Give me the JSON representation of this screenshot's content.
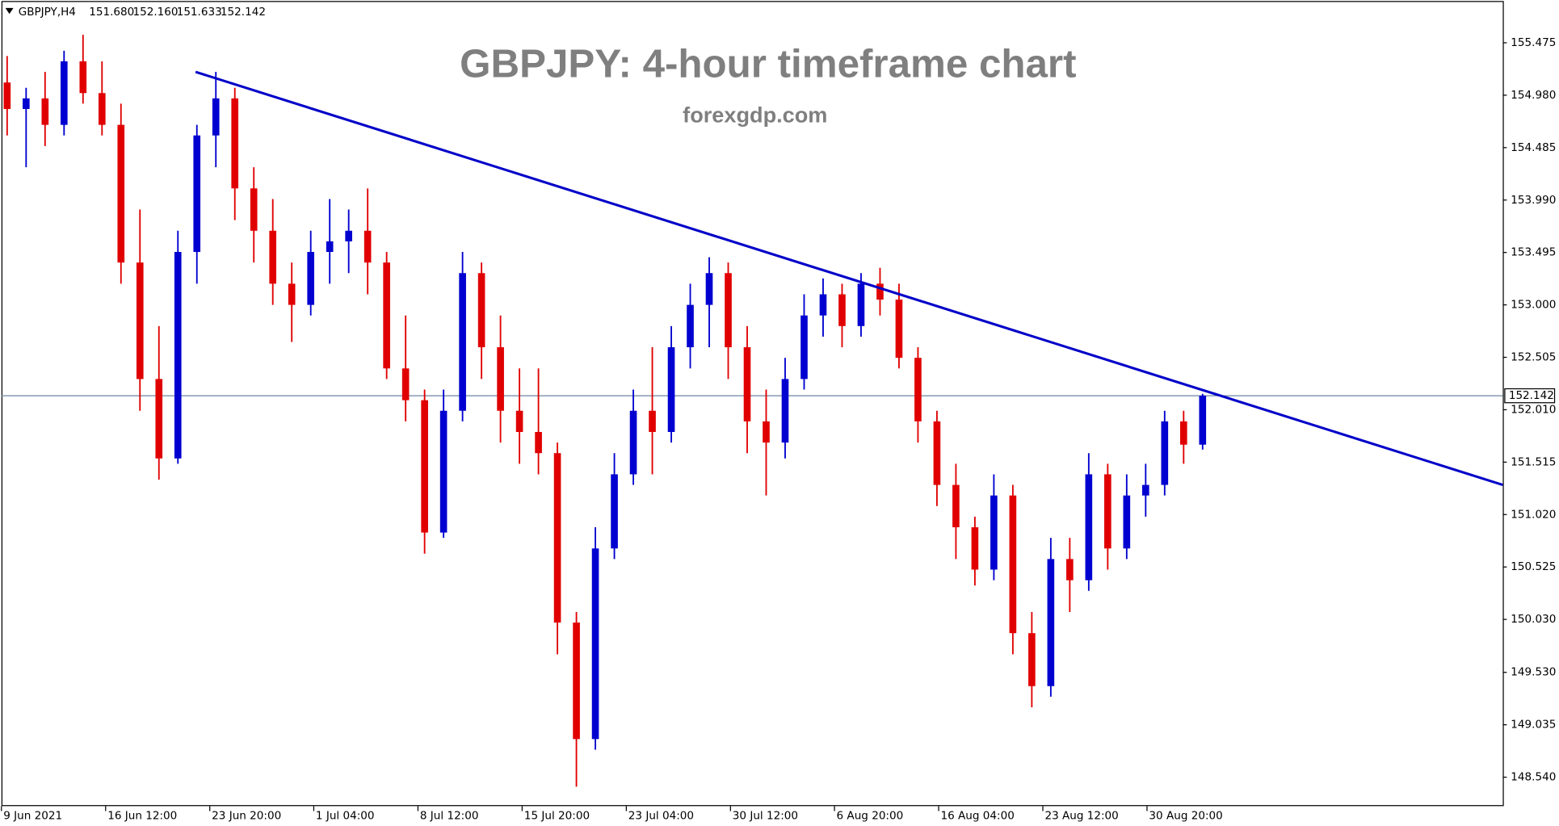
{
  "chart_data": {
    "type": "candlestick",
    "title": "GBPJPY: 4-hour timeframe chart",
    "subtitle": "forexgdp.com",
    "header": {
      "symbol": "GBPJPY,H4",
      "ohlc": [
        "151.680",
        "152.160",
        "151.633",
        "152.142"
      ]
    },
    "bull_color": "#0000d0",
    "bear_color": "#e00000",
    "x": [
      0,
      1,
      2,
      3,
      4,
      5,
      6,
      7,
      8,
      9,
      10,
      11,
      12,
      13,
      14,
      15,
      16,
      17,
      18,
      19,
      20,
      21,
      22,
      23,
      24,
      25,
      26,
      27,
      28,
      29,
      30,
      31,
      32,
      33,
      34,
      35,
      36,
      37,
      38,
      39,
      40,
      41,
      42,
      43,
      44,
      45,
      46,
      47,
      48,
      49,
      50,
      51,
      52,
      53,
      54,
      55,
      56,
      57,
      58,
      59,
      60,
      61,
      62,
      63
    ],
    "open": [
      155.1,
      154.85,
      154.95,
      154.7,
      155.3,
      155.0,
      154.7,
      153.4,
      152.3,
      151.55,
      153.5,
      154.6,
      154.95,
      154.1,
      153.7,
      153.2,
      153.0,
      153.5,
      153.6,
      153.7,
      153.4,
      152.4,
      152.1,
      150.85,
      152.0,
      153.3,
      152.6,
      152.0,
      151.8,
      151.6,
      150.0,
      148.9,
      150.7,
      151.4,
      152.0,
      151.8,
      152.6,
      153.0,
      153.3,
      152.6,
      151.9,
      151.7,
      152.3,
      152.9,
      153.1,
      152.8,
      153.2,
      153.05,
      152.5,
      151.9,
      151.3,
      150.9,
      150.5,
      151.2,
      149.9,
      149.4,
      150.6,
      150.4,
      151.4,
      150.7,
      151.2,
      151.3,
      151.9,
      151.68
    ],
    "high": [
      155.35,
      155.05,
      155.2,
      155.4,
      155.55,
      155.3,
      154.9,
      153.9,
      152.8,
      153.7,
      154.7,
      155.2,
      155.05,
      154.3,
      154.0,
      153.4,
      153.7,
      154.0,
      153.9,
      154.1,
      153.5,
      152.9,
      152.2,
      152.2,
      153.5,
      153.4,
      152.9,
      152.4,
      152.4,
      151.7,
      150.1,
      150.9,
      151.6,
      152.2,
      152.6,
      152.8,
      153.2,
      153.45,
      153.4,
      152.8,
      152.2,
      152.5,
      153.1,
      153.25,
      153.2,
      153.3,
      153.35,
      153.2,
      152.6,
      152.0,
      151.5,
      151.0,
      151.4,
      151.3,
      150.1,
      150.8,
      150.8,
      151.6,
      151.5,
      151.4,
      151.5,
      152.0,
      152.0,
      152.16
    ],
    "low": [
      154.6,
      154.3,
      154.5,
      154.6,
      154.9,
      154.6,
      153.2,
      152.0,
      151.35,
      151.5,
      153.2,
      154.3,
      153.8,
      153.4,
      153.0,
      152.65,
      152.9,
      153.2,
      153.3,
      153.1,
      152.3,
      151.9,
      150.65,
      150.8,
      151.9,
      152.3,
      151.7,
      151.5,
      151.4,
      149.7,
      148.45,
      148.8,
      150.6,
      151.3,
      151.4,
      151.7,
      152.4,
      152.6,
      152.3,
      151.6,
      151.2,
      151.55,
      152.2,
      152.7,
      152.6,
      152.7,
      152.9,
      152.4,
      151.7,
      151.1,
      150.6,
      150.35,
      150.4,
      149.7,
      149.2,
      149.3,
      150.1,
      150.3,
      150.5,
      150.6,
      151.0,
      151.2,
      151.5,
      151.633
    ],
    "close": [
      154.85,
      154.95,
      154.7,
      155.3,
      155.0,
      154.7,
      153.4,
      152.3,
      151.55,
      153.5,
      154.6,
      154.95,
      154.1,
      153.7,
      153.2,
      153.0,
      153.5,
      153.6,
      153.7,
      153.4,
      152.4,
      152.1,
      150.85,
      152.0,
      153.3,
      152.6,
      152.0,
      151.8,
      151.6,
      150.0,
      148.9,
      150.7,
      151.4,
      152.0,
      151.8,
      152.6,
      153.0,
      153.3,
      152.6,
      151.9,
      151.7,
      152.3,
      152.9,
      153.1,
      152.8,
      153.2,
      153.05,
      152.5,
      151.9,
      151.3,
      150.9,
      150.5,
      151.2,
      149.9,
      149.4,
      150.6,
      150.4,
      151.4,
      150.7,
      151.2,
      151.3,
      151.9,
      151.68,
      152.142
    ],
    "xlim": [
      -0.3,
      78.82
    ],
    "xticks": [
      {
        "value": -0.3,
        "label": "9 Jun 2021"
      },
      {
        "value": 5.19,
        "label": "16 Jun 12:00"
      },
      {
        "value": 10.68,
        "label": "23 Jun 20:00"
      },
      {
        "value": 16.16,
        "label": "1 Jul 04:00"
      },
      {
        "value": 21.65,
        "label": "8 Jul 12:00"
      },
      {
        "value": 27.14,
        "label": "15 Jul 20:00"
      },
      {
        "value": 32.63,
        "label": "23 Jul 04:00"
      },
      {
        "value": 38.12,
        "label": "30 Jul 12:00"
      },
      {
        "value": 43.6,
        "label": "6 Aug 20:00"
      },
      {
        "value": 49.09,
        "label": "16 Aug 04:00"
      },
      {
        "value": 54.58,
        "label": "23 Aug 12:00"
      },
      {
        "value": 60.07,
        "label": "30 Aug 20:00"
      }
    ],
    "ylim": [
      148.267,
      155.879
    ],
    "yticks": [
      155.475,
      {
        "value": 154.98,
        "label": "154.980"
      },
      154.485,
      {
        "value": 153.99,
        "label": "153.990"
      },
      153.495,
      {
        "value": 153,
        "label": "153.000"
      },
      152.505,
      {
        "value": 152.01,
        "label": "152.010"
      },
      151.515,
      {
        "value": 151.02,
        "label": "151.020"
      },
      150.525,
      {
        "value": 150.03,
        "label": "150.030"
      },
      {
        "value": 149.53,
        "label": "149.530"
      },
      149.035,
      {
        "value": 148.54,
        "label": "148.540"
      }
    ],
    "current_price": 152.142,
    "trendline": {
      "color": "#0000c8",
      "x": [
        9.93,
        78.82
      ],
      "y": [
        155.2,
        151.3
      ]
    }
  }
}
